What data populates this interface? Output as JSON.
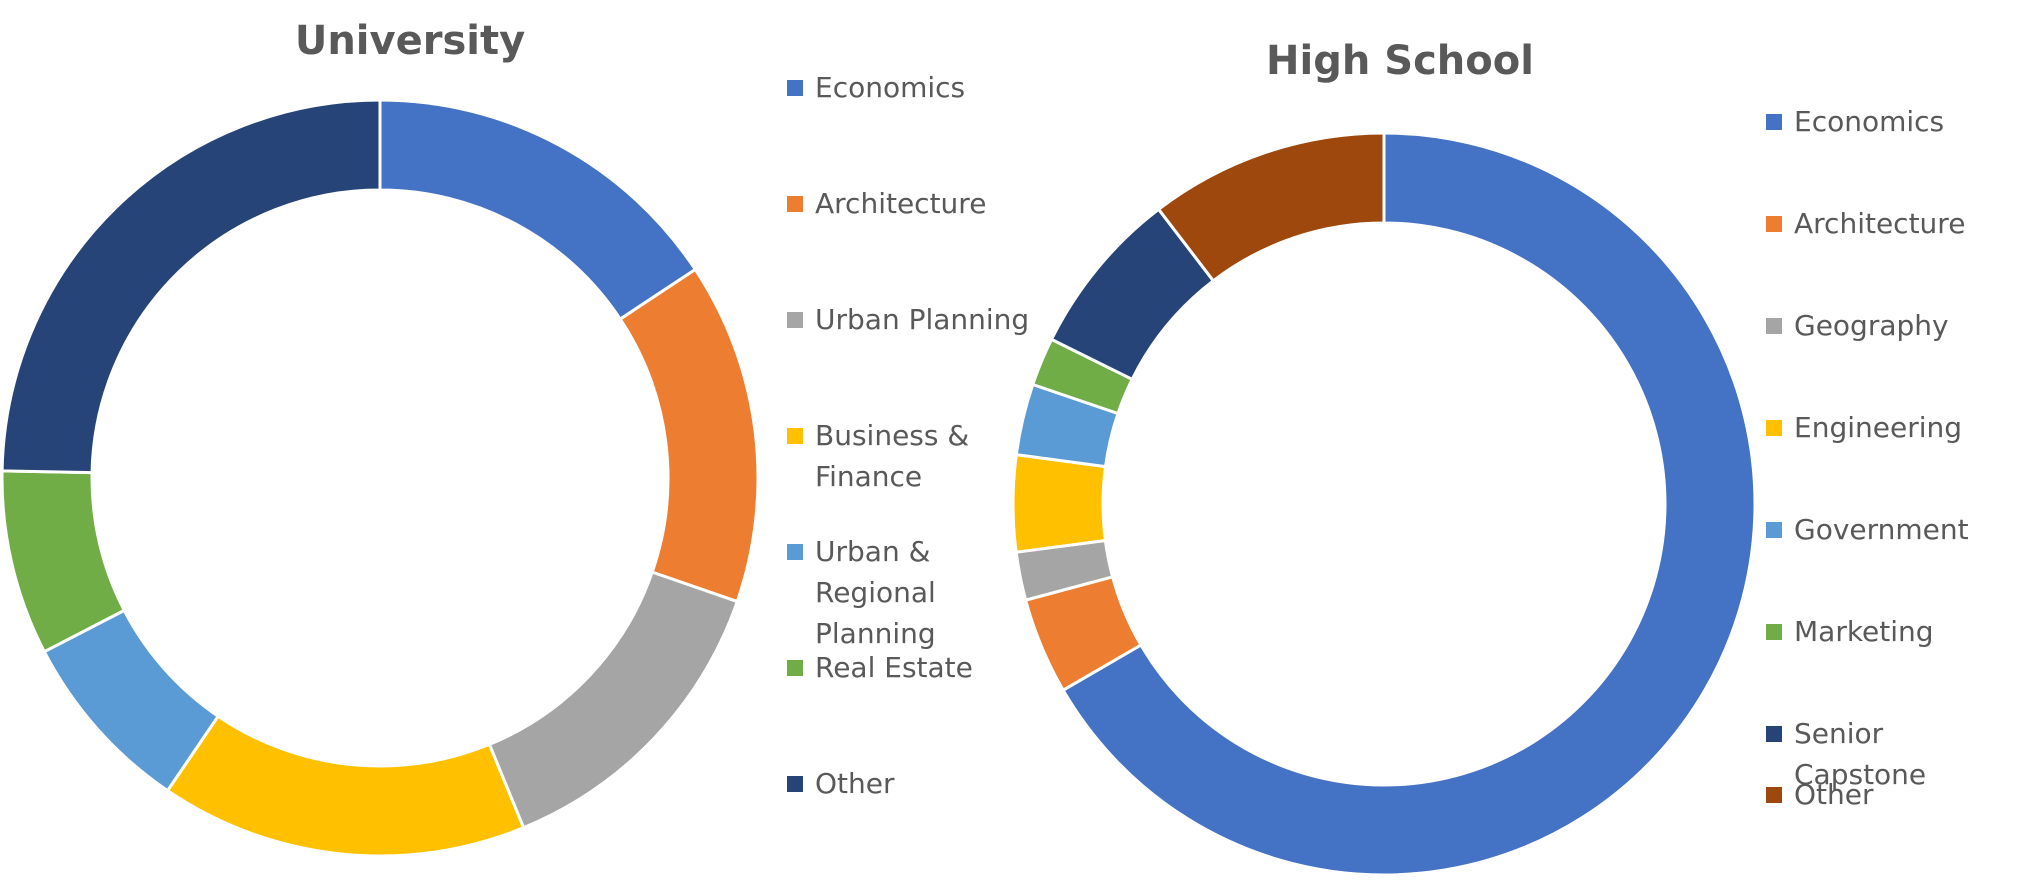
{
  "chart_data": [
    {
      "type": "donut",
      "title": "University",
      "categories": [
        "Economics",
        "Architecture",
        "Urban Planning",
        "Business & Finance",
        "Urban & Regional Planning",
        "Real Estate",
        "Other"
      ],
      "legend_labels": [
        [
          "Economics"
        ],
        [
          "Architecture"
        ],
        [
          "Urban Planning"
        ],
        [
          "Business &",
          "Finance"
        ],
        [
          "Urban &",
          "Regional",
          "Planning"
        ],
        [
          "Real Estate"
        ],
        [
          "Other"
        ]
      ],
      "values": [
        15.7,
        14.6,
        13.5,
        15.7,
        7.9,
        7.9,
        24.7
      ],
      "colors": [
        "#4472C4",
        "#ED7D31",
        "#A5A5A5",
        "#FFC000",
        "#5B9BD5",
        "#70AD47",
        "#264478"
      ],
      "legend_position": "right"
    },
    {
      "type": "donut",
      "title": "High School",
      "categories": [
        "Economics",
        "Architecture",
        "Geography",
        "Engineering",
        "Government",
        "Marketing",
        "Senior Capstone",
        "Other"
      ],
      "legend_labels": [
        [
          "Economics"
        ],
        [
          "Architecture"
        ],
        [
          "Geography"
        ],
        [
          "Engineering"
        ],
        [
          "Government"
        ],
        [
          "Marketing"
        ],
        [
          "Senior",
          "Capstone"
        ],
        [
          "Other"
        ]
      ],
      "values": [
        66.7,
        4.2,
        2.1,
        4.2,
        3.1,
        2.1,
        7.3,
        10.4
      ],
      "colors": [
        "#4472C4",
        "#ED7D31",
        "#A5A5A5",
        "#FFC000",
        "#5B9BD5",
        "#70AD47",
        "#264478",
        "#9E480E"
      ],
      "legend_position": "right"
    }
  ]
}
